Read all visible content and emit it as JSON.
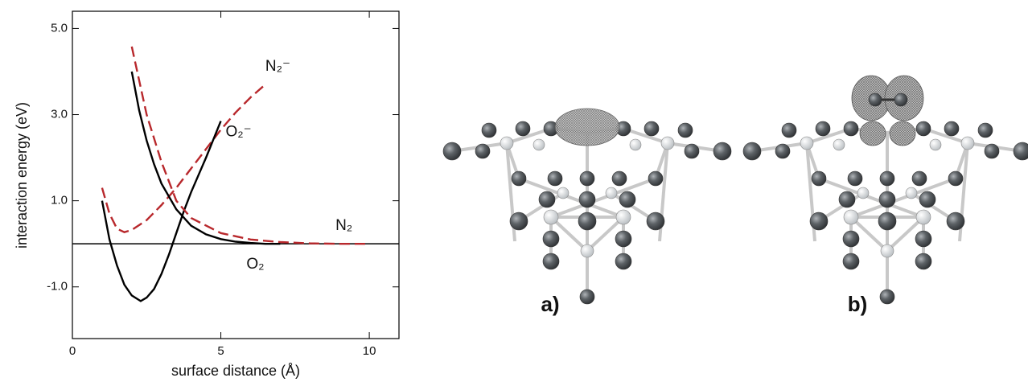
{
  "chart_data": {
    "type": "line",
    "xlabel": "surface distance (Å)",
    "ylabel": "interaction energy (eV)",
    "xlim": [
      0,
      11
    ],
    "ylim": [
      -2.2,
      5.4
    ],
    "xticks": [
      0,
      5,
      10
    ],
    "yticks": [
      {
        "value": 5,
        "label": "5.0"
      },
      {
        "value": 3,
        "label": "3.0"
      },
      {
        "value": 1,
        "label": "1.0"
      },
      {
        "value": -1,
        "label": "-1.0"
      }
    ],
    "zero_line": true,
    "series": [
      {
        "name": "N₂⁻",
        "color": "#b8282c",
        "dashed": true,
        "x": [
          1.0,
          1.25,
          1.5,
          1.75,
          2.0,
          2.5,
          3.0,
          3.5,
          4.0,
          4.5,
          5.0,
          5.5,
          6.0,
          6.5
        ],
        "values": [
          1.3,
          0.7,
          0.35,
          0.27,
          0.32,
          0.55,
          0.9,
          1.3,
          1.75,
          2.2,
          2.65,
          3.05,
          3.4,
          3.7
        ]
      },
      {
        "name": "O₂⁻",
        "color": "#000000",
        "dashed": false,
        "x": [
          1.0,
          1.25,
          1.5,
          1.75,
          2.0,
          2.3,
          2.5,
          2.75,
          3.0,
          3.25,
          3.5,
          3.75,
          4.0,
          4.5,
          5.0
        ],
        "values": [
          1.0,
          0.1,
          -0.5,
          -0.95,
          -1.2,
          -1.33,
          -1.25,
          -1.05,
          -0.7,
          -0.25,
          0.25,
          0.75,
          1.2,
          2.0,
          2.85
        ]
      },
      {
        "name": "N₂",
        "color": "#b8282c",
        "dashed": true,
        "x": [
          2.0,
          2.5,
          3.0,
          3.5,
          4.0,
          5.0,
          6.0,
          7.0,
          8.0,
          9.0,
          10.0
        ],
        "values": [
          4.58,
          3.0,
          1.9,
          1.0,
          0.6,
          0.25,
          0.1,
          0.04,
          0.01,
          0,
          0
        ]
      },
      {
        "name": "O₂",
        "color": "#000000",
        "dashed": false,
        "x": [
          2.0,
          2.25,
          2.5,
          2.75,
          3.0,
          3.5,
          4.0,
          4.5,
          5.0,
          5.5,
          6.0,
          6.5,
          7.0
        ],
        "values": [
          4.0,
          3.1,
          2.4,
          1.85,
          1.4,
          0.8,
          0.42,
          0.22,
          0.11,
          0.05,
          0.02,
          0,
          0
        ]
      }
    ]
  },
  "panels": [
    {
      "label": "a)"
    },
    {
      "label": "b)"
    }
  ]
}
